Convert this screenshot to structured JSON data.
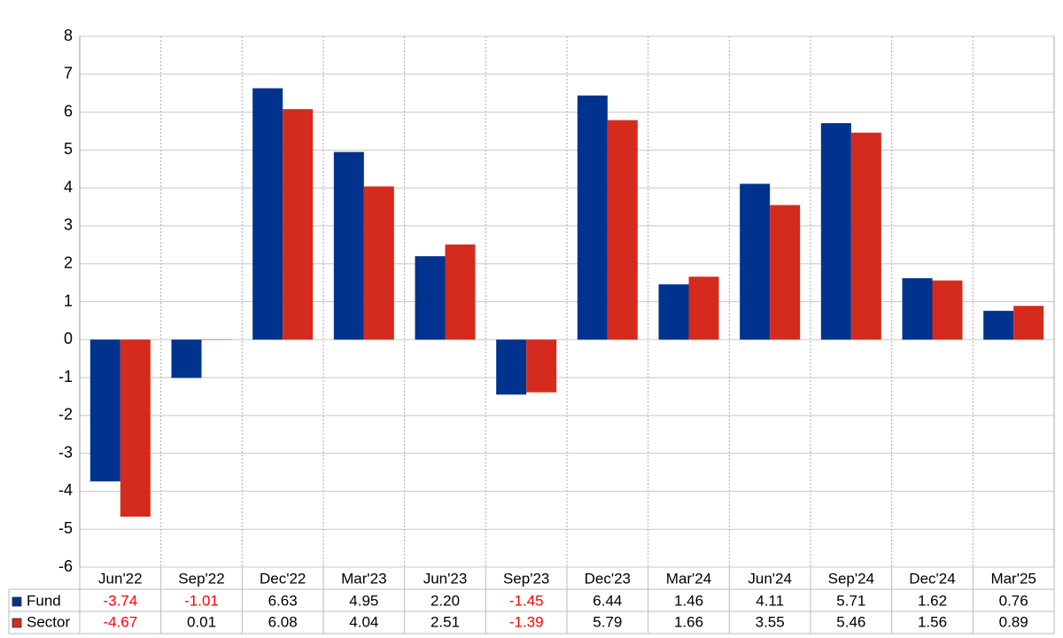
{
  "chart_data": {
    "type": "bar",
    "categories": [
      "Jun'22",
      "Sep'22",
      "Dec'22",
      "Mar'23",
      "Jun'23",
      "Sep'23",
      "Dec'23",
      "Mar'24",
      "Jun'24",
      "Sep'24",
      "Dec'24",
      "Mar'25"
    ],
    "series": [
      {
        "name": "Fund",
        "color": "#00338d",
        "values": [
          -3.74,
          -1.01,
          6.63,
          4.95,
          2.2,
          -1.45,
          6.44,
          1.46,
          4.11,
          5.71,
          1.62,
          0.76
        ],
        "value_labels": [
          "-3.74",
          "-1.01",
          "6.63",
          "4.95",
          "2.20",
          "-1.45",
          "6.44",
          "1.46",
          "4.11",
          "5.71",
          "1.62",
          "0.76"
        ]
      },
      {
        "name": "Sector",
        "color": "#d52b1e",
        "values": [
          -4.67,
          0.01,
          6.08,
          4.04,
          2.51,
          -1.39,
          5.79,
          1.66,
          3.55,
          5.46,
          1.56,
          0.89
        ],
        "value_labels": [
          "-4.67",
          "0.01",
          "6.08",
          "4.04",
          "2.51",
          "-1.39",
          "5.79",
          "1.66",
          "3.55",
          "5.46",
          "1.56",
          "0.89"
        ]
      }
    ],
    "ylim": [
      -6,
      8
    ],
    "yticks": [
      -6,
      -5,
      -4,
      -3,
      -2,
      -1,
      0,
      1,
      2,
      3,
      4,
      5,
      6,
      7,
      8
    ],
    "grid": true,
    "negative_color": "#ff0000"
  }
}
